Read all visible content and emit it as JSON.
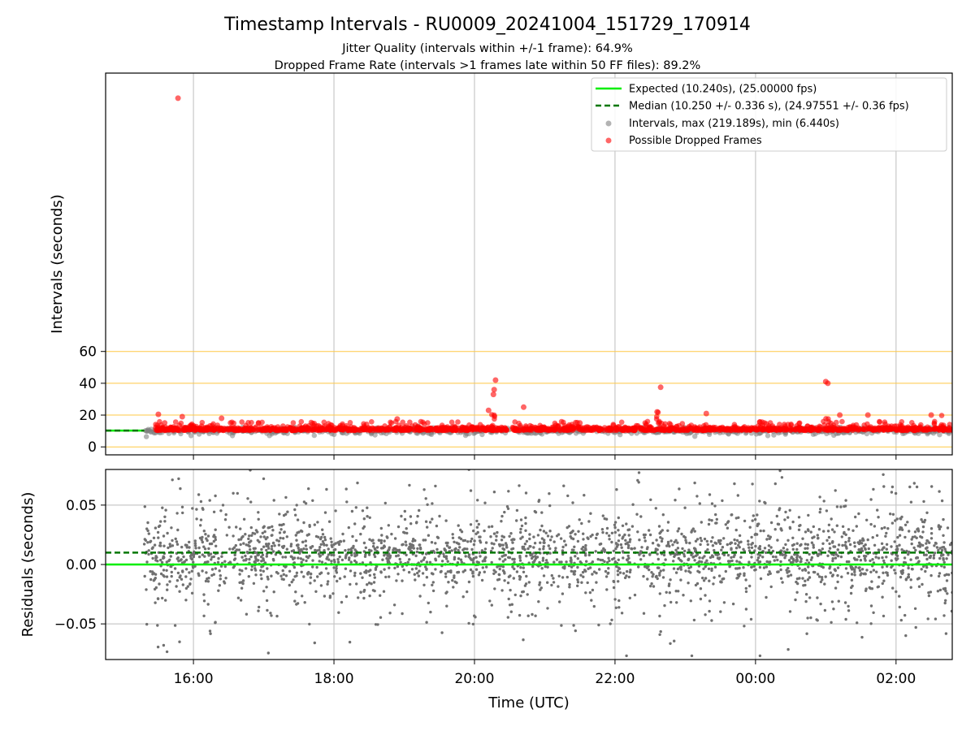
{
  "figure": {
    "title": "Timestamp Intervals - RU0009_20241004_151729_170914",
    "subtitle_1": "Jitter Quality (intervals within +/-1 frame): 64.9%",
    "subtitle_2": "Dropped Frame Rate (intervals >1 frames late within 50 FF files): 89.2%"
  },
  "colors": {
    "expected": "#00ee00",
    "median": "#007700",
    "intervals": "#808080",
    "dropped": "#ff0000",
    "threshold": "#ffc844",
    "grid": "#c8c8c8"
  },
  "chart_data": [
    {
      "type": "scatter",
      "ylabel": "Intervals (seconds)",
      "x_unit": "hours since 00:00 UTC of day 1 (values > 24 are next day)",
      "xlim": [
        14.75,
        26.8
      ],
      "ylim": [
        -5,
        235
      ],
      "yticks": [
        0,
        20,
        40,
        60
      ],
      "ytick_labels": [
        "0",
        "20",
        "40",
        "60"
      ],
      "xticks": [
        16,
        18,
        20,
        22,
        24,
        26
      ],
      "xtick_labels": [
        "16:00",
        "18:00",
        "20:00",
        "22:00",
        "00:00",
        "02:00"
      ],
      "grid": "x",
      "threshold_lines": [
        0,
        10,
        20,
        40,
        60
      ],
      "expected_line": {
        "label": "Expected (10.240s), (25.00000 fps)",
        "value": 10.24
      },
      "median_line": {
        "label": "Median (10.250 +/- 0.336 s), (24.97551 +/- 0.36 fps)",
        "value": 10.25
      },
      "series": [
        {
          "name": "Intervals, max (219.189s), min (6.440s)",
          "range": [
            15.3,
            26.8
          ],
          "min": 6.44,
          "max": 219.189
        },
        {
          "name": "Possible Dropped Frames",
          "outliers": [
            {
              "x": 15.78,
              "y": 219.2
            },
            {
              "x": 20.3,
              "y": 42
            },
            {
              "x": 20.28,
              "y": 36
            },
            {
              "x": 20.27,
              "y": 33
            },
            {
              "x": 20.7,
              "y": 25
            },
            {
              "x": 22.65,
              "y": 37.5
            },
            {
              "x": 25.0,
              "y": 41
            },
            {
              "x": 25.03,
              "y": 40
            },
            {
              "x": 20.2,
              "y": 23
            },
            {
              "x": 22.6,
              "y": 22
            },
            {
              "x": 15.5,
              "y": 20.5
            },
            {
              "x": 15.84,
              "y": 19
            },
            {
              "x": 16.4,
              "y": 18
            },
            {
              "x": 18.9,
              "y": 17.5
            },
            {
              "x": 21.5,
              "y": 15
            },
            {
              "x": 23.3,
              "y": 21
            },
            {
              "x": 25.2,
              "y": 20
            },
            {
              "x": 25.6,
              "y": 20
            },
            {
              "x": 26.5,
              "y": 20
            }
          ]
        }
      ],
      "legend": {
        "placement": "upper right",
        "entries": [
          "Expected (10.240s), (25.00000 fps)",
          "Median (10.250 +/- 0.336 s), (24.97551 +/- 0.36 fps)",
          "Intervals, max (219.189s), min (6.440s)",
          "Possible Dropped Frames"
        ]
      }
    },
    {
      "type": "scatter",
      "xlabel": "Time (UTC)",
      "ylabel": "Residuals (seconds)",
      "xlim": [
        14.75,
        26.8
      ],
      "ylim": [
        -0.08,
        0.08
      ],
      "yticks": [
        -0.05,
        0.0,
        0.05
      ],
      "ytick_labels": [
        "−0.05",
        "0.00",
        "0.05"
      ],
      "xticks": [
        16,
        18,
        20,
        22,
        24,
        26
      ],
      "xtick_labels": [
        "16:00",
        "18:00",
        "20:00",
        "22:00",
        "00:00",
        "02:00"
      ],
      "grid": "both",
      "expected_line": 0.0,
      "median_line": 0.01,
      "series": [
        {
          "name": "Residuals",
          "range": [
            15.3,
            26.8
          ],
          "y_min": -0.08,
          "y_max": 0.08
        }
      ]
    }
  ]
}
